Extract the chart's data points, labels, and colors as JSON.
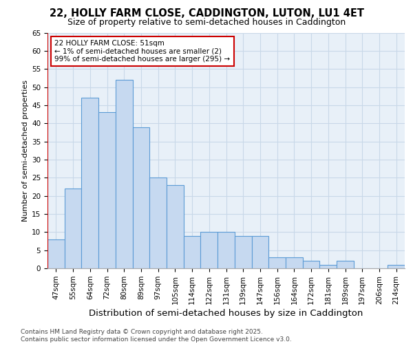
{
  "title1": "22, HOLLY FARM CLOSE, CADDINGTON, LUTON, LU1 4ET",
  "title2": "Size of property relative to semi-detached houses in Caddington",
  "xlabel": "Distribution of semi-detached houses by size in Caddington",
  "ylabel": "Number of semi-detached properties",
  "categories": [
    "47sqm",
    "55sqm",
    "64sqm",
    "72sqm",
    "80sqm",
    "89sqm",
    "97sqm",
    "105sqm",
    "114sqm",
    "122sqm",
    "131sqm",
    "139sqm",
    "147sqm",
    "156sqm",
    "164sqm",
    "172sqm",
    "181sqm",
    "189sqm",
    "197sqm",
    "206sqm",
    "214sqm"
  ],
  "values": [
    8,
    22,
    47,
    43,
    52,
    39,
    25,
    23,
    9,
    10,
    10,
    9,
    9,
    3,
    3,
    2,
    1,
    2,
    0,
    0,
    1
  ],
  "bar_color": "#c6d9f0",
  "bar_edge_color": "#5b9bd5",
  "highlight_color": "#cc0000",
  "annotation_text": "22 HOLLY FARM CLOSE: 51sqm\n← 1% of semi-detached houses are smaller (2)\n99% of semi-detached houses are larger (295) →",
  "annotation_box_color": "#ffffff",
  "annotation_box_edge_color": "#cc0000",
  "ylim": [
    0,
    65
  ],
  "yticks": [
    0,
    5,
    10,
    15,
    20,
    25,
    30,
    35,
    40,
    45,
    50,
    55,
    60,
    65
  ],
  "grid_color": "#c8d8e8",
  "background_color": "#e8f0f8",
  "footer_text": "Contains HM Land Registry data © Crown copyright and database right 2025.\nContains public sector information licensed under the Open Government Licence v3.0.",
  "title_fontsize": 10.5,
  "subtitle_fontsize": 9,
  "xlabel_fontsize": 9.5,
  "ylabel_fontsize": 8,
  "tick_fontsize": 7.5,
  "annotation_fontsize": 7.5,
  "footer_fontsize": 6.5
}
